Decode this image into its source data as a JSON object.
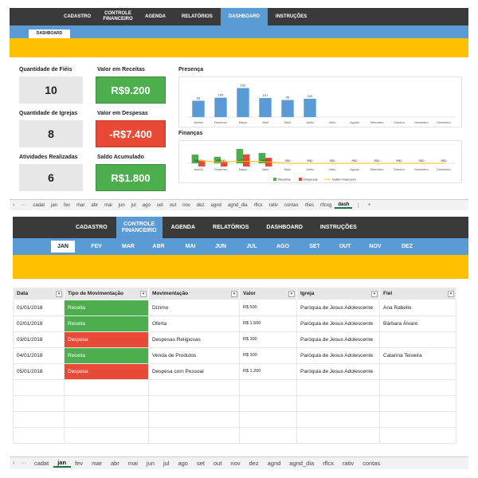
{
  "top": {
    "nav": [
      "CADASTRO",
      "CONTROLE FINANCEIRO",
      "AGENDA",
      "RELATÓRIOS",
      "DASHBOARD",
      "INSTRUÇÕES"
    ],
    "active_nav": "DASHBOARD",
    "subtab": "DASHBOARD",
    "kpis": {
      "fieis_label": "Quantidade de Fiéis",
      "fieis_value": "10",
      "receitas_label": "Valor em Receitas",
      "receitas_value": "R$9.200",
      "igrejas_label": "Quantidade de Igrejas",
      "igrejas_value": "8",
      "despesas_label": "Valor em Despesas",
      "despesas_value": "-R$7.400",
      "atividades_label": "Atividades Realizadas",
      "atividades_value": "6",
      "saldo_label": "Saldo Acumulado",
      "saldo_value": "R$1.800"
    },
    "presenca_title": "Presença",
    "financas_title": "Finanças",
    "sheet_tabs": [
      "cadat",
      "jan",
      "fev",
      "mar",
      "abr",
      "mai",
      "jun",
      "jul",
      "ago",
      "set",
      "out",
      "nov",
      "dez",
      "agnd",
      "agnd_dia",
      "rflcx",
      "rativ",
      "contas",
      "rfies",
      "rflcxg",
      "dash"
    ],
    "active_sheet": "dash"
  },
  "chart_data": [
    {
      "type": "bar",
      "title": "Presença",
      "categories": [
        "Janeiro",
        "Fevereiro",
        "Março",
        "Abril",
        "Maio",
        "Junho",
        "Julho",
        "Agosto",
        "Setembro",
        "Outubro",
        "Novembro",
        "Dezembro"
      ],
      "values": [
        92,
        109,
        163,
        107,
        96,
        103,
        0,
        0,
        0,
        0,
        0,
        0
      ],
      "labels": [
        "92",
        "109",
        "163",
        "107",
        "96",
        "103",
        "",
        "",
        "",
        "",
        "",
        ""
      ],
      "color": "#5b9bd5"
    },
    {
      "type": "bar",
      "title": "Finanças",
      "categories": [
        "Janeiro",
        "Fevereiro",
        "Março",
        "Abril",
        "Maio",
        "Junho",
        "Julho",
        "Agosto",
        "Setembro",
        "Outubro",
        "Novembro",
        "Dezembro"
      ],
      "series": [
        {
          "name": "Receitas",
          "color": "#4cae4c",
          "values": [
            2000,
            1500,
            3300,
            2400,
            0,
            0,
            0,
            0,
            0,
            0,
            0,
            0
          ]
        },
        {
          "name": "Despesas",
          "color": "#e84a35",
          "values": [
            1400,
            1200,
            2800,
            2000,
            0,
            0,
            0,
            0,
            0,
            0,
            0,
            0
          ]
        },
        {
          "name": "Saldo Financeiro",
          "type": "line",
          "color": "#ffc000",
          "values": [
            600,
            300,
            500,
            400,
            0,
            0,
            0,
            0,
            0,
            0,
            0,
            0
          ]
        }
      ],
      "point_labels": [
        "R$600",
        "R$300",
        "R$500",
        "R$400",
        "R$0",
        "R$0",
        "R$0",
        "R$0",
        "R$0",
        "R$0",
        "R$0",
        "R$0"
      ]
    }
  ],
  "bottom": {
    "nav": [
      "CADASTRO",
      "CONTROLE FINANCEIRO",
      "AGENDA",
      "RELATÓRIOS",
      "DASHBOARD",
      "INSTRUÇÕES"
    ],
    "active_nav": "CONTROLE FINANCEIRO",
    "months": [
      "JAN",
      "FEV",
      "MAR",
      "ABR",
      "MAI",
      "JUN",
      "JUL",
      "AGO",
      "SET",
      "OUT",
      "NOV",
      "DEZ"
    ],
    "active_month": "JAN",
    "columns": [
      "Data",
      "Tipo de Movimentação",
      "Movimentação",
      "Valor",
      "Igreja",
      "Fiel"
    ],
    "rows": [
      {
        "data": "01/01/2018",
        "tipo": "Receita",
        "mov": "Dízimo",
        "valor": "R$ 500",
        "igreja": "Paróquia de Jesus Adolescente",
        "fiel": "Ana Rabello"
      },
      {
        "data": "02/01/2018",
        "tipo": "Receita",
        "mov": "Oferta",
        "valor": "R$ 1.500",
        "igreja": "Paróquia de Jesus Adolescente",
        "fiel": "Bárbara Álvaro"
      },
      {
        "data": "03/01/2018",
        "tipo": "Despesa",
        "mov": "Despesas Religiosas",
        "valor": "R$ 300",
        "igreja": "Paróquia de Jesus Adolescente",
        "fiel": ""
      },
      {
        "data": "04/01/2018",
        "tipo": "Receita",
        "mov": "Venda de Produtos",
        "valor": "R$ 300",
        "igreja": "Paróquia de Jesus Adolescente",
        "fiel": "Catarina Teixeira"
      },
      {
        "data": "05/01/2018",
        "tipo": "Despesa",
        "mov": "Despesa com Pessoal",
        "valor": "R$ 1.200",
        "igreja": "Paróquia de Jesus Adolescente",
        "fiel": ""
      }
    ],
    "sheet_tabs": [
      "cadat",
      "jan",
      "fev",
      "mar",
      "abr",
      "mai",
      "jun",
      "jul",
      "ago",
      "set",
      "out",
      "nov",
      "dez",
      "agnd",
      "agnd_dia",
      "rflcx",
      "rativ",
      "contas"
    ],
    "active_sheet": "jan"
  },
  "colors": {
    "nav": "#3a3a3a",
    "accent_blue": "#5b9bd5",
    "yellow": "#ffc000",
    "green": "#4cae4c",
    "red": "#e84a35"
  }
}
